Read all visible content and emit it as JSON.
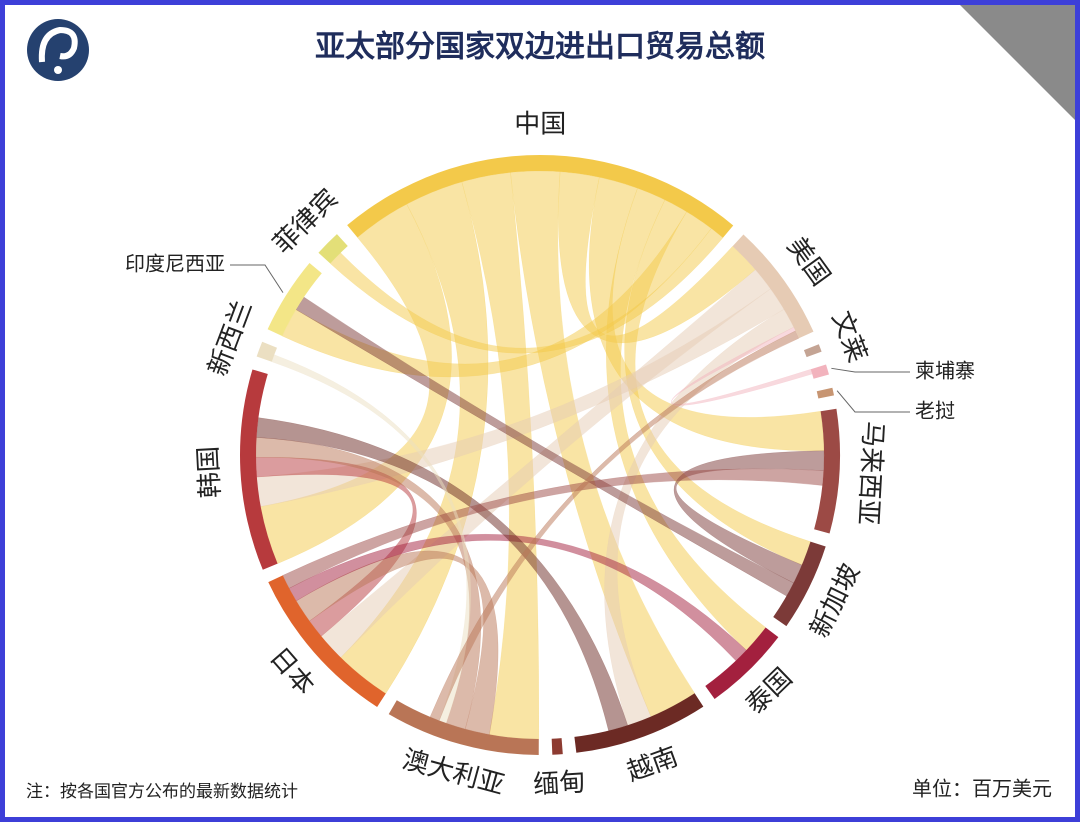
{
  "chart_data": {
    "type": "chord",
    "title": "亚太部分国家双边进出口贸易总额",
    "note": "注：按各国官方公布的最新数据统计",
    "unit": "单位：百万美元",
    "categories": [
      "中国",
      "美国",
      "文莱",
      "柬埔寨",
      "老挝",
      "马来西亚",
      "新加坡",
      "泰国",
      "越南",
      "缅甸",
      "澳大利亚",
      "日本",
      "韩国",
      "新西兰",
      "印度尼西亚",
      "菲律宾"
    ],
    "values": [
      80,
      23,
      1.5,
      2,
      1.5,
      24,
      17,
      17,
      26,
      2,
      30,
      32,
      39,
      3,
      15,
      5
    ],
    "colors": [
      "#f3c94a",
      "#e6cbb4",
      "#c4a494",
      "#f2b3bd",
      "#c79572",
      "#9c4a45",
      "#7c3a38",
      "#a3203e",
      "#6c2a24",
      "#8d3b31",
      "#b97556",
      "#e0642c",
      "#b73a3d",
      "#ebdfc2",
      "#f3e687",
      "#e3df78"
    ],
    "links": [
      {
        "source": 0,
        "target": 12,
        "value": 12
      },
      {
        "source": 0,
        "target": 11,
        "value": 12
      },
      {
        "source": 0,
        "target": 10,
        "value": 10
      },
      {
        "source": 0,
        "target": 8,
        "value": 10
      },
      {
        "source": 0,
        "target": 1,
        "value": 8
      },
      {
        "source": 0,
        "target": 5,
        "value": 8
      },
      {
        "source": 0,
        "target": 7,
        "value": 6
      },
      {
        "source": 0,
        "target": 6,
        "value": 5
      },
      {
        "source": 0,
        "target": 14,
        "value": 6
      },
      {
        "source": 0,
        "target": 15,
        "value": 3
      },
      {
        "source": 1,
        "target": 11,
        "value": 6
      },
      {
        "source": 1,
        "target": 12,
        "value": 6
      },
      {
        "source": 1,
        "target": 8,
        "value": 5
      },
      {
        "source": 12,
        "target": 11,
        "value": 4
      },
      {
        "source": 10,
        "target": 11,
        "value": 5
      },
      {
        "source": 10,
        "target": 12,
        "value": 4
      },
      {
        "source": 6,
        "target": 5,
        "value": 4
      },
      {
        "source": 6,
        "target": 14,
        "value": 3
      },
      {
        "source": 7,
        "target": 11,
        "value": 3
      },
      {
        "source": 8,
        "target": 12,
        "value": 4
      },
      {
        "source": 5,
        "target": 11,
        "value": 3
      },
      {
        "source": 3,
        "target": 1,
        "value": 1
      },
      {
        "source": 13,
        "target": 10,
        "value": 1.5
      },
      {
        "source": 10,
        "target": 1,
        "value": 2
      }
    ]
  }
}
